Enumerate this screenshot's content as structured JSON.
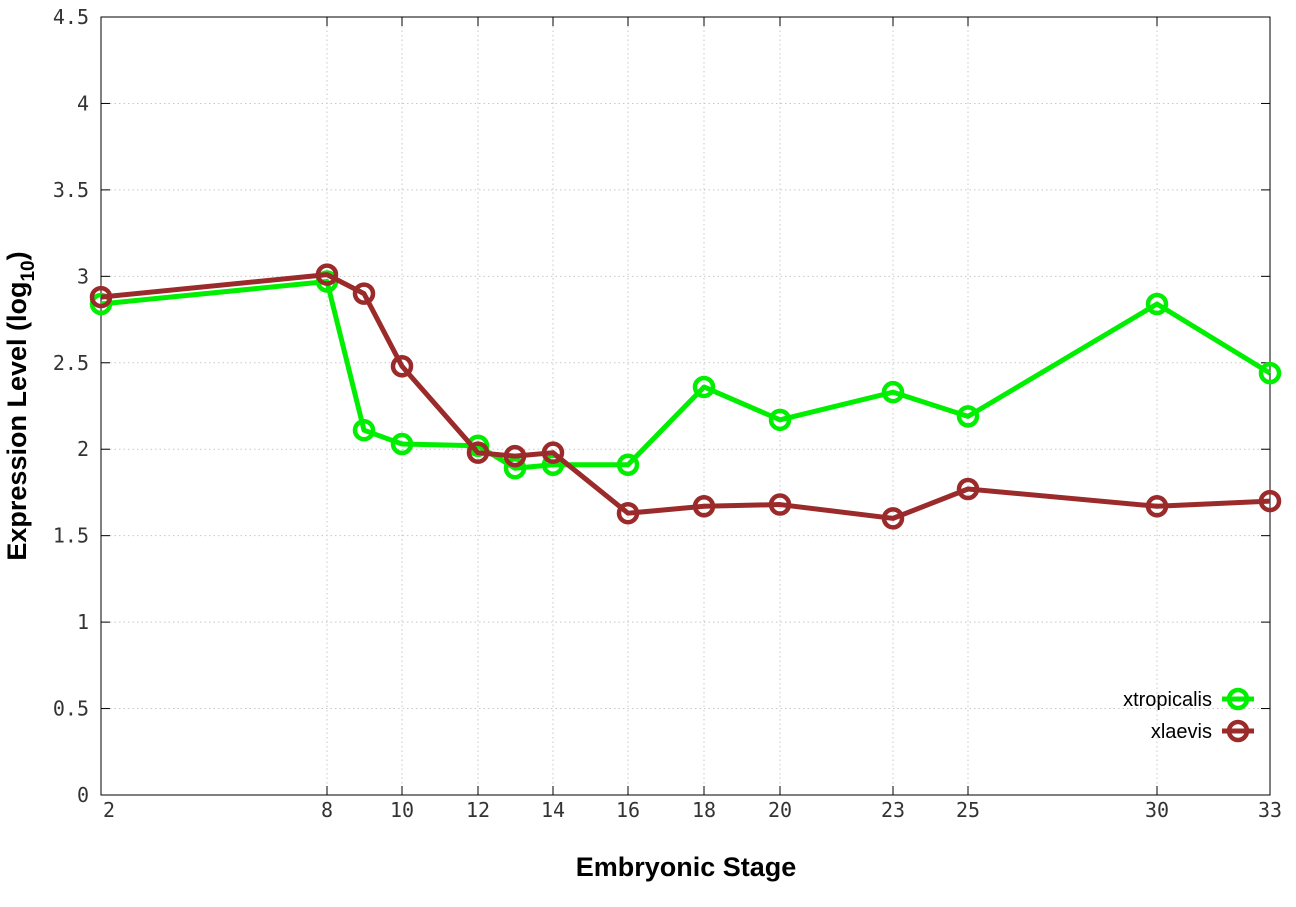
{
  "chart_data": {
    "type": "line",
    "xlabel": "Embryonic Stage",
    "ylabel": "Expression Level (log",
    "ylabel_sub": "10",
    "ylabel_end": ")",
    "x_scale": "ordinal",
    "categories": [
      "2",
      "8",
      "9",
      "10",
      "12",
      "13",
      "14",
      "16",
      "18",
      "20",
      "23",
      "25",
      "30",
      "33"
    ],
    "x_tick_labels": [
      "2",
      "8",
      "10",
      "12",
      "14",
      "16",
      "18",
      "20",
      "23",
      "25",
      "30",
      "33"
    ],
    "y_tick_labels": [
      "0",
      "0.5",
      "1",
      "1.5",
      "2",
      "2.5",
      "3",
      "3.5",
      "4",
      "4.5"
    ],
    "ylim": [
      0,
      4.5
    ],
    "grid": true,
    "legend_position": "bottom-right",
    "series": [
      {
        "name": "xtropicalis",
        "color": "#00ee00",
        "values": [
          2.84,
          2.97,
          2.11,
          2.03,
          2.02,
          1.89,
          1.91,
          1.91,
          2.36,
          2.17,
          2.33,
          2.19,
          2.84,
          2.44
        ]
      },
      {
        "name": "xlaevis",
        "color": "#9b2a2a",
        "values": [
          2.88,
          3.01,
          2.9,
          2.48,
          1.98,
          1.96,
          1.98,
          1.63,
          1.67,
          1.68,
          1.6,
          1.77,
          1.67,
          1.7
        ]
      }
    ]
  }
}
